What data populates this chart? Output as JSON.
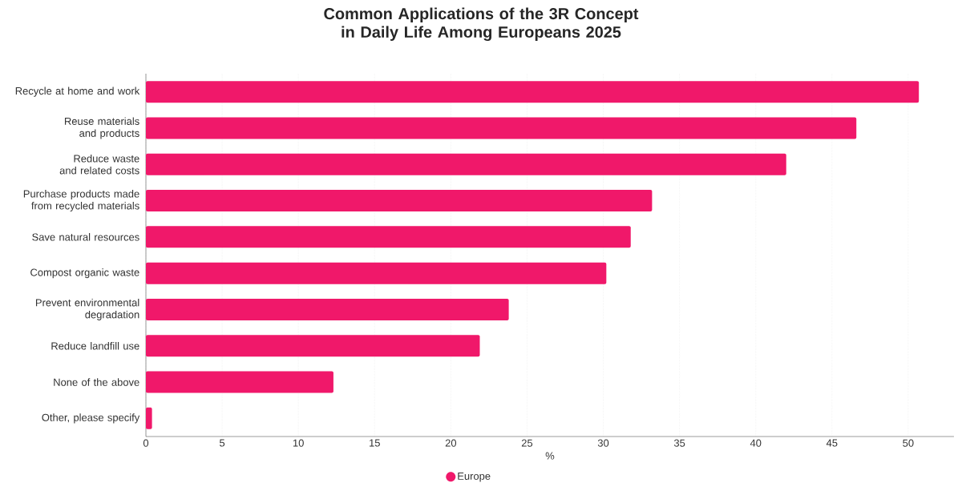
{
  "chart_data": {
    "type": "bar",
    "orientation": "horizontal",
    "title": "Common Applications of the 3R Concept in Daily Life Among Europeans 2025",
    "xlabel": "%",
    "categories": [
      "Recycle at home and work",
      "Reuse materials and products",
      "Reduce waste and related costs",
      "Purchase products made from recycled materials",
      "Save natural resources",
      "Compost organic waste",
      "Prevent environmental degradation",
      "Reduce landfill use",
      "None of the above",
      "Other, please specify"
    ],
    "series": [
      {
        "name": "Europe",
        "color": "#f0186a",
        "values": [
          50.7,
          46.6,
          42.0,
          33.2,
          31.8,
          30.2,
          23.8,
          21.9,
          12.3,
          0.4
        ]
      }
    ],
    "xlim": [
      0,
      53
    ],
    "xticks": [
      0,
      5,
      10,
      15,
      20,
      25,
      30,
      35,
      40,
      45,
      50
    ],
    "grid": "x",
    "legend": "bottom"
  }
}
